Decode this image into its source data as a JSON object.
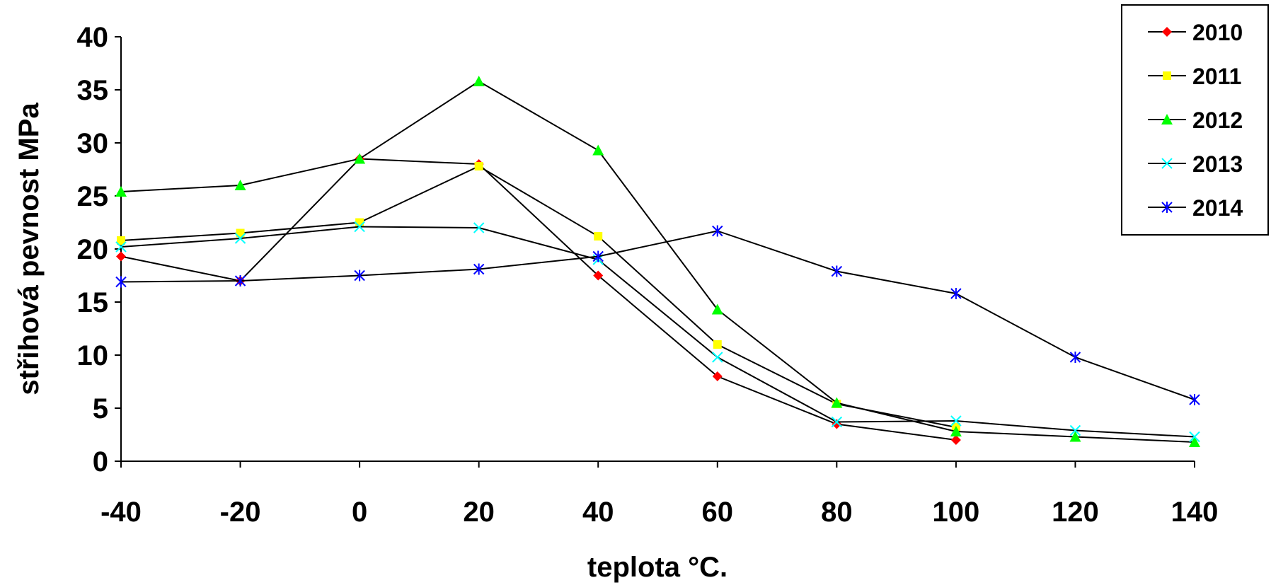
{
  "chart_data": {
    "type": "line",
    "title": "",
    "xlabel": "teplota °C.",
    "ylabel": "střihová pevnost MPa",
    "x": [
      -40,
      -20,
      0,
      20,
      40,
      60,
      80,
      100,
      120,
      140
    ],
    "x_tick_labels": [
      "-40",
      "-20",
      "0",
      "20",
      "40",
      "60",
      "80",
      "100",
      "120",
      "140"
    ],
    "y_tick_labels": [
      "0",
      "5",
      "10",
      "15",
      "20",
      "25",
      "30",
      "35",
      "40"
    ],
    "ylim": [
      0,
      40
    ],
    "grid": false,
    "legend_position": "top-right",
    "series": [
      {
        "name": "2010",
        "color": "#ff0000",
        "marker": "diamond",
        "x": [
          -40,
          -20,
          0,
          20,
          40,
          60,
          80,
          100
        ],
        "values": [
          19.3,
          17.0,
          28.5,
          28.0,
          17.5,
          8.0,
          3.5,
          2.0
        ]
      },
      {
        "name": "2011",
        "color": "#ffff00",
        "marker": "square",
        "x": [
          -40,
          -20,
          0,
          20,
          40,
          60,
          80,
          100
        ],
        "values": [
          20.8,
          21.5,
          22.5,
          27.8,
          21.2,
          11.0,
          5.4,
          3.2
        ]
      },
      {
        "name": "2012",
        "color": "#00ff00",
        "marker": "triangle",
        "x": [
          -40,
          -20,
          0,
          20,
          40,
          60,
          80,
          100,
          120,
          140
        ],
        "values": [
          25.4,
          26.0,
          28.5,
          35.8,
          29.3,
          14.3,
          5.5,
          2.8,
          2.3,
          1.8
        ]
      },
      {
        "name": "2013",
        "color": "#00ffff",
        "marker": "x",
        "x": [
          -40,
          -20,
          0,
          20,
          40,
          60,
          80,
          100,
          120,
          140
        ],
        "values": [
          20.2,
          21.0,
          22.1,
          22.0,
          19.0,
          9.8,
          3.7,
          3.8,
          2.9,
          2.3
        ]
      },
      {
        "name": "2014",
        "color": "#0000ff",
        "marker": "star",
        "x": [
          -40,
          -20,
          0,
          20,
          40,
          60,
          80,
          100,
          120,
          140
        ],
        "values": [
          16.9,
          17.0,
          17.5,
          18.1,
          19.3,
          21.7,
          17.9,
          15.8,
          9.8,
          5.8
        ]
      }
    ]
  }
}
